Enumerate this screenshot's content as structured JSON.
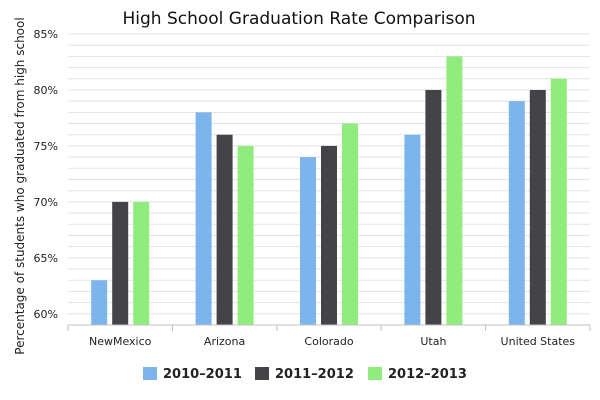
{
  "chart_data": {
    "type": "bar",
    "title": "High School Graduation Rate Comparison",
    "xlabel": "",
    "ylabel": "Percentage of students who graduated from high school",
    "ylim": [
      59,
      85
    ],
    "yticks": [
      60,
      65,
      70,
      75,
      80,
      85
    ],
    "ytick_labels": [
      "60%",
      "65%",
      "70%",
      "75%",
      "80%",
      "85%"
    ],
    "grid": true,
    "legend_position": "bottom",
    "categories": [
      "NewMexico",
      "Arizona",
      "Colorado",
      "Utah",
      "United States"
    ],
    "series": [
      {
        "name": "2010–2011",
        "color": "#7cb5ec",
        "values": [
          63,
          78,
          74,
          76,
          79
        ]
      },
      {
        "name": "2011–2012",
        "color": "#434348",
        "values": [
          70,
          76,
          75,
          80,
          80
        ]
      },
      {
        "name": "2012–2013",
        "color": "#90ed7d",
        "values": [
          70,
          75,
          77,
          83,
          81
        ]
      }
    ]
  }
}
